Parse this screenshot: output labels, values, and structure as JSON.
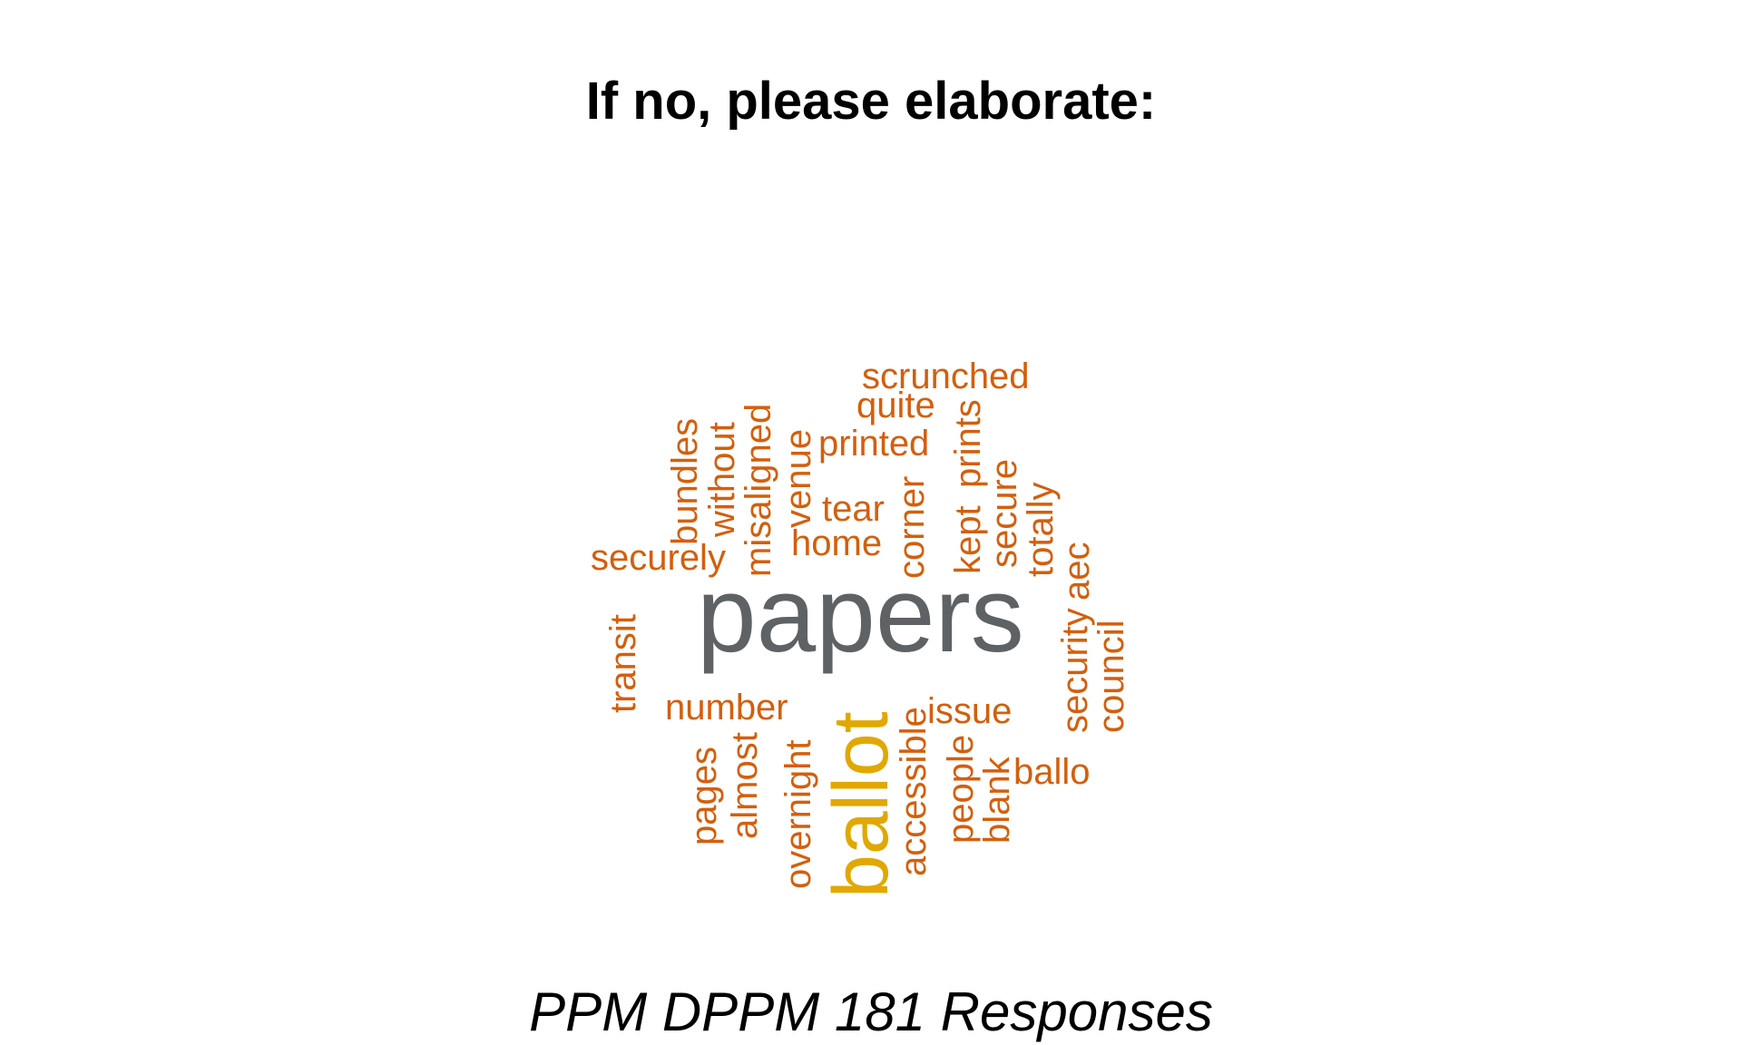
{
  "title": "If no, please elaborate:",
  "subtitle": "PPM DPPM 181 Responses",
  "colors": {
    "primary_word": "#5f6264",
    "secondary_word": "#e0a800",
    "other_words": "#d35f0c"
  },
  "words": [
    {
      "text": "papers",
      "weight": 1,
      "color_role": "primary_word"
    },
    {
      "text": "ballot",
      "weight": 2,
      "color_role": "secondary_word"
    },
    {
      "text": "scrunched",
      "weight": 3,
      "color_role": "other_words"
    },
    {
      "text": "quite",
      "weight": 3,
      "color_role": "other_words"
    },
    {
      "text": "printed",
      "weight": 3,
      "color_role": "other_words"
    },
    {
      "text": "tear",
      "weight": 3,
      "color_role": "other_words"
    },
    {
      "text": "home",
      "weight": 3,
      "color_role": "other_words"
    },
    {
      "text": "securely",
      "weight": 3,
      "color_role": "other_words"
    },
    {
      "text": "number",
      "weight": 3,
      "color_role": "other_words"
    },
    {
      "text": "issue",
      "weight": 3,
      "color_role": "other_words"
    },
    {
      "text": "ballo",
      "weight": 3,
      "color_role": "other_words"
    },
    {
      "text": "bundles",
      "weight": 3,
      "color_role": "other_words"
    },
    {
      "text": "without",
      "weight": 3,
      "color_role": "other_words"
    },
    {
      "text": "misaligned",
      "weight": 3,
      "color_role": "other_words"
    },
    {
      "text": "venue",
      "weight": 3,
      "color_role": "other_words"
    },
    {
      "text": "corner",
      "weight": 3,
      "color_role": "other_words"
    },
    {
      "text": "prints",
      "weight": 3,
      "color_role": "other_words"
    },
    {
      "text": "kept",
      "weight": 3,
      "color_role": "other_words"
    },
    {
      "text": "secure",
      "weight": 3,
      "color_role": "other_words"
    },
    {
      "text": "totally",
      "weight": 3,
      "color_role": "other_words"
    },
    {
      "text": "aec",
      "weight": 3,
      "color_role": "other_words"
    },
    {
      "text": "security",
      "weight": 3,
      "color_role": "other_words"
    },
    {
      "text": "council",
      "weight": 3,
      "color_role": "other_words"
    },
    {
      "text": "transit",
      "weight": 3,
      "color_role": "other_words"
    },
    {
      "text": "pages",
      "weight": 3,
      "color_role": "other_words"
    },
    {
      "text": "almost",
      "weight": 3,
      "color_role": "other_words"
    },
    {
      "text": "overnight",
      "weight": 3,
      "color_role": "other_words"
    },
    {
      "text": "accessible",
      "weight": 3,
      "color_role": "other_words"
    },
    {
      "text": "people",
      "weight": 3,
      "color_role": "other_words"
    },
    {
      "text": "blank",
      "weight": 3,
      "color_role": "other_words"
    }
  ]
}
